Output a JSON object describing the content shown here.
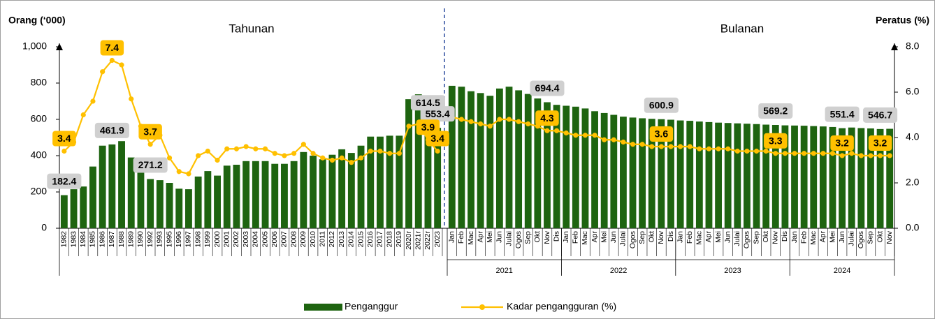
{
  "chart_data": {
    "type": "combo",
    "y_label": "Orang (‘000)",
    "y2_label": "Peratus (%)",
    "ylim": [
      0,
      1000
    ],
    "yticks": [
      0,
      200,
      400,
      600,
      800,
      {
        "value": 1000,
        "label": "1,000"
      }
    ],
    "y2lim": [
      0,
      8
    ],
    "y2ticks": [
      {
        "value": 0,
        "label": "0.0"
      },
      {
        "value": 2,
        "label": "2.0"
      },
      {
        "value": 4,
        "label": "4.0"
      },
      {
        "value": 6,
        "label": "6.0"
      },
      {
        "value": 8,
        "label": "8.0"
      }
    ],
    "grid": false,
    "legend_position": "bottom",
    "sections": [
      {
        "label": "Tahunan",
        "categories": [
          "1982",
          "1983",
          "1984",
          "1985",
          "1986",
          "1987",
          "1988",
          "1989",
          "1990",
          "1992",
          "1993",
          "1995",
          "1996",
          "1997",
          "1998",
          "1999",
          "2000",
          "2001",
          "2002",
          "2003",
          "2004",
          "2005",
          "2006",
          "2007",
          "2008",
          "2009",
          "2010",
          "2011",
          "2012",
          "2013",
          "2014",
          "2015",
          "2016",
          "2017",
          "2018",
          "2019",
          "2020r",
          "2021r",
          "2022r",
          "2023"
        ]
      },
      {
        "label": "Bulanan",
        "groups": [
          {
            "label": "2021",
            "categories": [
              "Jan",
              "Feb",
              "Mac",
              "Apr",
              "Mei",
              "Jun",
              "Julai",
              "Ogos",
              "Sep",
              "Okt",
              "Nov",
              "Dis"
            ]
          },
          {
            "label": "2022",
            "categories": [
              "Jan",
              "Feb",
              "Mac",
              "Apr",
              "Mei",
              "Jun",
              "Julai",
              "Ogos",
              "Sep",
              "Okt",
              "Nov",
              "Dis"
            ]
          },
          {
            "label": "2023",
            "categories": [
              "Jan",
              "Feb",
              "Mac",
              "Apr",
              "Mei",
              "Jun",
              "Julai",
              "Ogos",
              "Sep",
              "Okt",
              "Nov",
              "Dis"
            ]
          },
          {
            "label": "2024",
            "categories": [
              "Jan",
              "Feb",
              "Mac",
              "Apr",
              "Mei",
              "Jun",
              "Julai",
              "Ogos",
              "Sep",
              "Okt",
              "Nov"
            ]
          }
        ]
      }
    ],
    "series": [
      {
        "name": "Penganggur",
        "type": "bar",
        "color": "#1e6410",
        "label_color": "#d0d0d0",
        "values": [
          182.4,
          215,
          230,
          340,
          455,
          461.9,
          480,
          390,
          345,
          271.2,
          265,
          250,
          218,
          215,
          285,
          315,
          290,
          345,
          350,
          370,
          370,
          370,
          355,
          355,
          370,
          420,
          400,
          380,
          405,
          435,
          415,
          455,
          505,
          505,
          510,
          510,
          711.0,
          738,
          614.5,
          553.4,
          785,
          780,
          755,
          745,
          730,
          770,
          780,
          760,
          740,
          715,
          694.4,
          680,
          675,
          670,
          660,
          645,
          635,
          625,
          615,
          610,
          606,
          603,
          600.9,
          598,
          594,
          592,
          588,
          585,
          582,
          580,
          578,
          576,
          574,
          571,
          569.2,
          567,
          566,
          565,
          563,
          561,
          558,
          551.4,
          555,
          552,
          550,
          546.7,
          548
        ],
        "value_labels": [
          "182.4",
          null,
          null,
          null,
          null,
          "461.9",
          null,
          null,
          null,
          "271.2",
          null,
          null,
          null,
          null,
          null,
          null,
          null,
          null,
          null,
          null,
          null,
          null,
          null,
          null,
          null,
          null,
          null,
          null,
          null,
          null,
          null,
          null,
          null,
          null,
          null,
          null,
          null,
          null,
          "614.5",
          "553.4",
          null,
          null,
          null,
          null,
          null,
          null,
          null,
          null,
          null,
          null,
          "694.4",
          null,
          null,
          null,
          null,
          null,
          null,
          null,
          null,
          null,
          null,
          null,
          "600.9",
          null,
          null,
          null,
          null,
          null,
          null,
          null,
          null,
          null,
          null,
          null,
          "569.2",
          null,
          null,
          null,
          null,
          null,
          null,
          "551.4",
          null,
          null,
          null,
          "546.7",
          null
        ]
      },
      {
        "name": "Kadar pengangguran (%)",
        "type": "line",
        "axis": "y2",
        "color": "#ffc000",
        "label_color": "#ffc000",
        "values": [
          3.4,
          3.8,
          5.0,
          5.6,
          6.9,
          7.4,
          7.2,
          5.7,
          4.5,
          3.7,
          4.1,
          3.1,
          2.5,
          2.4,
          3.2,
          3.4,
          3.0,
          3.5,
          3.5,
          3.6,
          3.5,
          3.5,
          3.3,
          3.2,
          3.3,
          3.7,
          3.3,
          3.1,
          3.0,
          3.1,
          2.9,
          3.1,
          3.4,
          3.4,
          3.3,
          3.3,
          4.5,
          4.6,
          3.9,
          3.4,
          4.9,
          4.8,
          4.7,
          4.6,
          4.5,
          4.8,
          4.8,
          4.7,
          4.6,
          4.5,
          4.3,
          4.3,
          4.2,
          4.1,
          4.1,
          4.1,
          3.9,
          3.9,
          3.8,
          3.7,
          3.7,
          3.6,
          3.6,
          3.6,
          3.6,
          3.6,
          3.5,
          3.5,
          3.5,
          3.5,
          3.4,
          3.4,
          3.4,
          3.4,
          3.3,
          3.3,
          3.3,
          3.3,
          3.3,
          3.3,
          3.3,
          3.2,
          3.3,
          3.2,
          3.2,
          3.2,
          3.2
        ],
        "value_labels": [
          "3.4",
          null,
          null,
          null,
          null,
          "7.4",
          null,
          null,
          null,
          "3.7",
          null,
          null,
          null,
          null,
          null,
          null,
          null,
          null,
          null,
          null,
          null,
          null,
          null,
          null,
          null,
          null,
          null,
          null,
          null,
          null,
          null,
          null,
          null,
          null,
          null,
          null,
          null,
          null,
          "3.9",
          "3.4",
          null,
          null,
          null,
          null,
          null,
          null,
          null,
          null,
          null,
          null,
          "4.3",
          null,
          null,
          null,
          null,
          null,
          null,
          null,
          null,
          null,
          null,
          null,
          "3.6",
          null,
          null,
          null,
          null,
          null,
          null,
          null,
          null,
          null,
          null,
          null,
          "3.3",
          null,
          null,
          null,
          null,
          null,
          null,
          "3.2",
          null,
          null,
          null,
          "3.2",
          null
        ]
      }
    ]
  }
}
